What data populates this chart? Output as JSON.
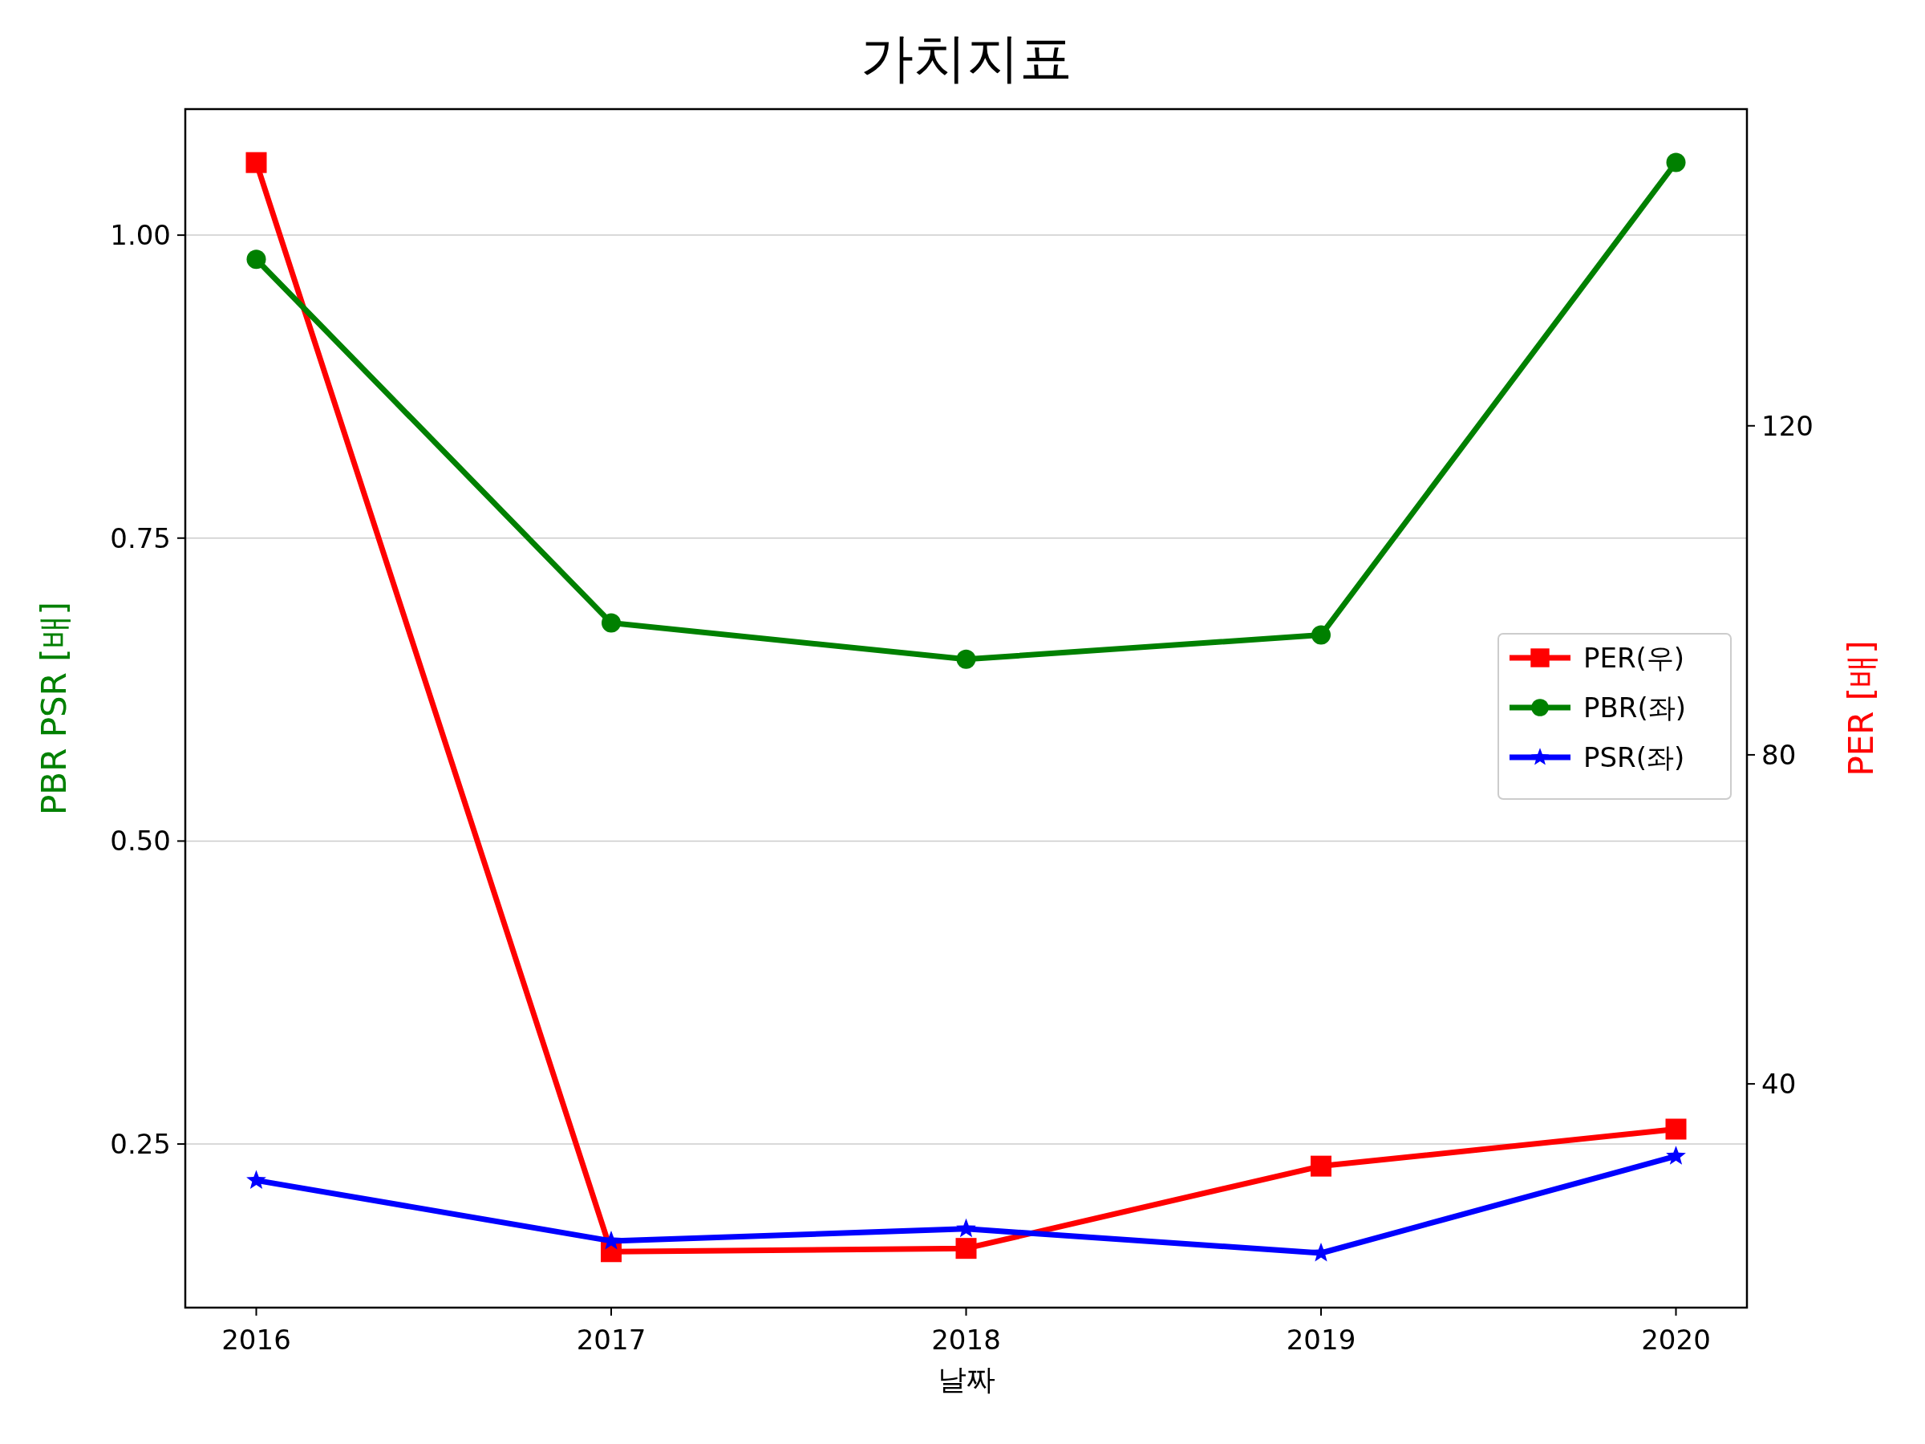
{
  "chart_data": {
    "type": "line",
    "title": "가치지표",
    "xlabel": "날짜",
    "ylabel": "PBR PSR [배]",
    "y2label": "PER [배]",
    "x": [
      2016,
      2017,
      2018,
      2019,
      2020
    ],
    "xlim": [
      2015.8,
      2020.2
    ],
    "xticks": [
      2016,
      2017,
      2018,
      2019,
      2020
    ],
    "ylim": [
      0.115,
      1.104
    ],
    "yticks": [
      {
        "value": 0.25,
        "label": "0.25"
      },
      {
        "value": 0.5,
        "label": "0.50"
      },
      {
        "value": 0.75,
        "label": "0.75"
      },
      {
        "value": 1.0,
        "label": "1.00"
      }
    ],
    "y2lim": [
      12.8,
      158.5
    ],
    "y2ticks": [
      40,
      80,
      120
    ],
    "grid": "y",
    "legend": "right",
    "series": [
      {
        "name": "PER(우)",
        "color": "#ff0000",
        "axis": "y2",
        "marker": "square",
        "values": [
          152,
          19.6,
          20,
          30,
          34.5
        ]
      },
      {
        "name": "PBR(좌)",
        "color": "#008000",
        "marker": "circle",
        "values": [
          0.98,
          0.68,
          0.65,
          0.67,
          1.06
        ]
      },
      {
        "name": "PSR(좌)",
        "color": "#0000ff",
        "marker": "star",
        "values": [
          0.22,
          0.17,
          0.18,
          0.16,
          0.24
        ]
      }
    ]
  }
}
